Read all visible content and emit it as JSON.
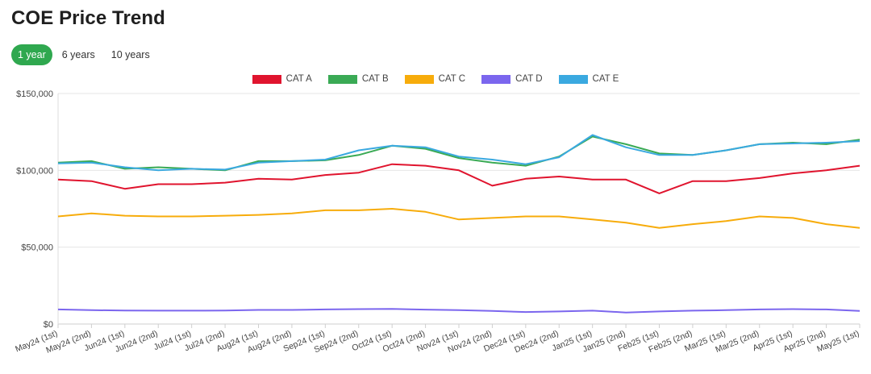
{
  "page": {
    "title": "COE Price Trend",
    "tabs": [
      {
        "label": "1 year",
        "active": true
      },
      {
        "label": "6 years",
        "active": false
      },
      {
        "label": "10 years",
        "active": false
      }
    ]
  },
  "colors": {
    "active_tab": "#2fa84f"
  },
  "chart_data": {
    "type": "line",
    "grid": true,
    "legend_position": "top-center",
    "ylim": [
      0,
      150000
    ],
    "yticks": [
      {
        "value": 0,
        "label": "$0"
      },
      {
        "value": 50000,
        "label": "$50,000"
      },
      {
        "value": 100000,
        "label": "$100,000"
      },
      {
        "value": 150000,
        "label": "$150,000"
      }
    ],
    "categories": [
      "May24 (1st)",
      "May24 (2nd)",
      "Jun24 (1st)",
      "Jun24 (2nd)",
      "Jul24 (1st)",
      "Jul24 (2nd)",
      "Aug24 (1st)",
      "Aug24 (2nd)",
      "Sep24 (1st)",
      "Sep24 (2nd)",
      "Oct24 (1st)",
      "Oct24 (2nd)",
      "Nov24 (1st)",
      "Nov24 (2nd)",
      "Dec24 (1st)",
      "Dec24 (2nd)",
      "Jan25 (1st)",
      "Jan25 (2nd)",
      "Feb25 (1st)",
      "Feb25 (2nd)",
      "Mar25 (1st)",
      "Mar25 (2nd)",
      "Apr25 (1st)",
      "Apr25 (2nd)",
      "May25 (1st)"
    ],
    "series": [
      {
        "name": "CAT A",
        "color": "#e0142e",
        "values": [
          94000,
          93000,
          88000,
          91000,
          91000,
          92000,
          94500,
          94000,
          97000,
          98500,
          104000,
          103000,
          100000,
          90000,
          94500,
          96000,
          94000,
          94000,
          85000,
          93000,
          93000,
          95000,
          98000,
          100000,
          103000
        ]
      },
      {
        "name": "CAT B",
        "color": "#3aaa55",
        "values": [
          105000,
          106000,
          101000,
          102000,
          101000,
          100000,
          106000,
          106000,
          106500,
          110000,
          116000,
          114000,
          108000,
          105000,
          103000,
          109000,
          122000,
          117000,
          111000,
          110000,
          113000,
          117000,
          118000,
          117000,
          120000
        ]
      },
      {
        "name": "CAT C",
        "color": "#f7ac0b",
        "values": [
          70000,
          72000,
          70500,
          70000,
          70000,
          70500,
          71000,
          72000,
          74000,
          74000,
          75000,
          73000,
          68000,
          69000,
          70000,
          70000,
          68000,
          66000,
          62500,
          65000,
          67000,
          70000,
          69000,
          65000,
          62500
        ]
      },
      {
        "name": "CAT D",
        "color": "#7b66ee",
        "values": [
          9500,
          9000,
          8800,
          8700,
          8700,
          8800,
          9200,
          9200,
          9500,
          9700,
          9800,
          9400,
          9000,
          8500,
          7800,
          8200,
          8700,
          7500,
          8200,
          8700,
          9000,
          9500,
          9700,
          9500,
          8500
        ]
      },
      {
        "name": "CAT E",
        "color": "#3aa9e0",
        "values": [
          104500,
          105000,
          102000,
          100000,
          101000,
          100500,
          105000,
          106000,
          107000,
          113000,
          116000,
          115000,
          109000,
          107000,
          104000,
          108500,
          123000,
          115000,
          110000,
          110000,
          113000,
          117000,
          117500,
          118000,
          119000
        ]
      }
    ]
  }
}
